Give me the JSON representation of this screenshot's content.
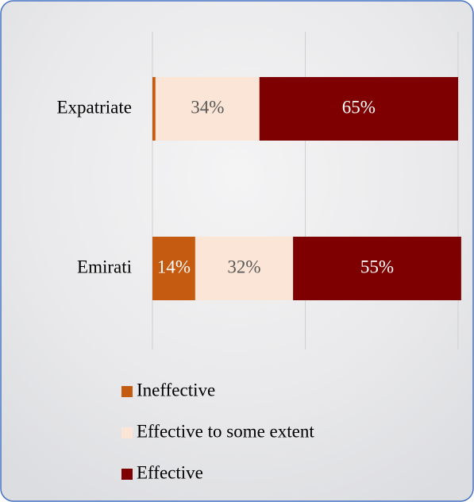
{
  "chart_data": {
    "type": "stacked-bar-horizontal",
    "categories": [
      "Expatriate",
      "Emirati"
    ],
    "series": [
      {
        "name": "Ineffective",
        "color": "#c55a11",
        "values": [
          1,
          14
        ],
        "value_labels": [
          null,
          "14%"
        ]
      },
      {
        "name": "Effective to some extent",
        "color": "#fbe5d6",
        "values": [
          34,
          32
        ],
        "value_labels": [
          "34%",
          "32%"
        ]
      },
      {
        "name": "Effective",
        "color": "#7f0000",
        "values": [
          65,
          55
        ],
        "value_labels": [
          "65%",
          "55%"
        ]
      }
    ],
    "xlim": [
      0,
      100
    ],
    "xticks": [
      0,
      50,
      100
    ],
    "grid": true,
    "legend": "bottom"
  }
}
